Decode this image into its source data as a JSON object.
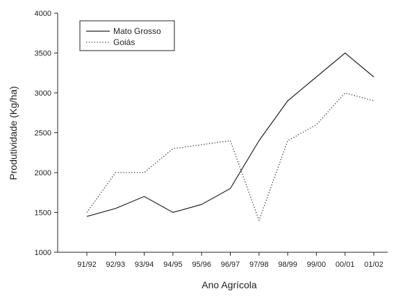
{
  "chart_data": {
    "type": "line",
    "title": "",
    "xlabel": "Ano Agrícola",
    "ylabel": "Produtividade (Kg/ha)",
    "categories": [
      "91/92",
      "92/93",
      "93/94",
      "94/95",
      "95/96",
      "96/97",
      "97/98",
      "98/99",
      "99/00",
      "00/01",
      "01/02"
    ],
    "ylim": [
      1000,
      4000
    ],
    "yticks": [
      1000,
      1500,
      2000,
      2500,
      3000,
      3500,
      4000
    ],
    "grid": false,
    "legend_position": "top-left",
    "series": [
      {
        "name": "Mato Grosso",
        "style": "solid",
        "color": "#222222",
        "values": [
          1450,
          1550,
          1700,
          1500,
          1600,
          1800,
          2400,
          2900,
          3200,
          3500,
          3200
        ]
      },
      {
        "name": "Goiás",
        "style": "dotted",
        "color": "#333333",
        "values": [
          1500,
          2000,
          2000,
          2300,
          2350,
          2400,
          1400,
          2400,
          2600,
          3000,
          2900
        ]
      }
    ]
  }
}
